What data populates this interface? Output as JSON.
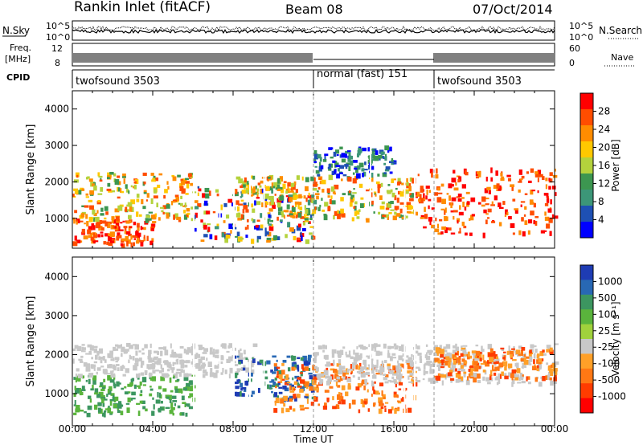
{
  "header": {
    "station": "Rankin Inlet (fitACF)",
    "beam": "Beam 08",
    "date": "07/Oct/2014"
  },
  "top_panels": {
    "nsky_label": "N.Sky",
    "nsearch_label": "N.Search",
    "nsky_ticks": [
      "10^5",
      "10^0"
    ],
    "nsearch_ticks": [
      "10^5",
      "10^0"
    ],
    "freq_label_1": "Freq.",
    "freq_label_2": "[MHz]",
    "freq_ticks": [
      "12",
      "8"
    ],
    "nave_label": "Nave",
    "nave_ticks": [
      "60",
      "0"
    ],
    "cpid_label": "CPID",
    "cpid_segments": [
      {
        "name": "twofsound 3503",
        "start_hour": 0
      },
      {
        "name": "normal (fast) 151",
        "start_hour": 12
      },
      {
        "name": "twofsound 3503",
        "start_hour": 18
      }
    ]
  },
  "colorbars": {
    "power": {
      "label": "Power [dB]",
      "ticks": [
        "28",
        "24",
        "20",
        "16",
        "12",
        "8",
        "4"
      ],
      "colors": [
        "#ff0000",
        "#ff4d00",
        "#ff8c00",
        "#ffc800",
        "#b4d23c",
        "#3c9650",
        "#3c9678",
        "#1e50b4",
        "#0000ff"
      ]
    },
    "velocity": {
      "label": "Velocity [m s⁻¹]",
      "ticks": [
        "1000",
        "500",
        "100",
        "25",
        "-25",
        "-100",
        "-500",
        "-1000"
      ],
      "colors": [
        "#1e3cb4",
        "#2868b4",
        "#3c9660",
        "#5ab43c",
        "#a0d23c",
        "#c8c8c8",
        "#ffa028",
        "#ff7814",
        "#ff3c00",
        "#ff0000"
      ]
    }
  },
  "chart_data": [
    {
      "type": "heatmap",
      "panel": "power",
      "ylabel": "Slant Range [km]",
      "xlabel": "Time UT",
      "x_ticks": [
        "00:00",
        "04:00",
        "08:00",
        "12:00",
        "16:00",
        "20:00",
        "00:00"
      ],
      "y_ticks": [
        "1000",
        "2000",
        "3000",
        "4000"
      ],
      "xlim": [
        0,
        24
      ],
      "ylim": [
        180,
        4500
      ],
      "bands": [
        {
          "t0": 0,
          "t1": 4,
          "r0": 300,
          "r1": 1000,
          "level": "high"
        },
        {
          "t0": 0,
          "t1": 6,
          "r0": 1000,
          "r1": 2300,
          "level": "mid"
        },
        {
          "t0": 6,
          "t1": 12,
          "r0": 400,
          "r1": 1900,
          "level": "mixed"
        },
        {
          "t0": 8,
          "t1": 17,
          "r0": 1000,
          "r1": 2200,
          "level": "mid"
        },
        {
          "t0": 12,
          "t1": 16,
          "r0": 2200,
          "r1": 3000,
          "level": "low"
        },
        {
          "t0": 17,
          "t1": 24,
          "r0": 600,
          "r1": 2400,
          "level": "high"
        }
      ]
    },
    {
      "type": "heatmap",
      "panel": "velocity",
      "ylabel": "Slant Range [km]",
      "xlabel": "Time UT",
      "x_ticks": [
        "00:00",
        "04:00",
        "08:00",
        "12:00",
        "16:00",
        "20:00",
        "00:00"
      ],
      "y_ticks": [
        "1000",
        "2000",
        "3000",
        "4000"
      ],
      "xlim": [
        0,
        24
      ],
      "ylim": [
        180,
        4500
      ],
      "bands": [
        {
          "t0": 0,
          "t1": 6,
          "r0": 500,
          "r1": 1500,
          "level": "toward-slow"
        },
        {
          "t0": 0,
          "t1": 9,
          "r0": 1500,
          "r1": 2300,
          "level": "near-zero"
        },
        {
          "t0": 8,
          "t1": 12,
          "r0": 900,
          "r1": 2000,
          "level": "toward-fast"
        },
        {
          "t0": 10,
          "t1": 17,
          "r0": 600,
          "r1": 1800,
          "level": "away"
        },
        {
          "t0": 12,
          "t1": 24,
          "r0": 1300,
          "r1": 2300,
          "level": "near-zero"
        },
        {
          "t0": 18,
          "t1": 24,
          "r0": 1400,
          "r1": 2200,
          "level": "away"
        }
      ]
    }
  ]
}
